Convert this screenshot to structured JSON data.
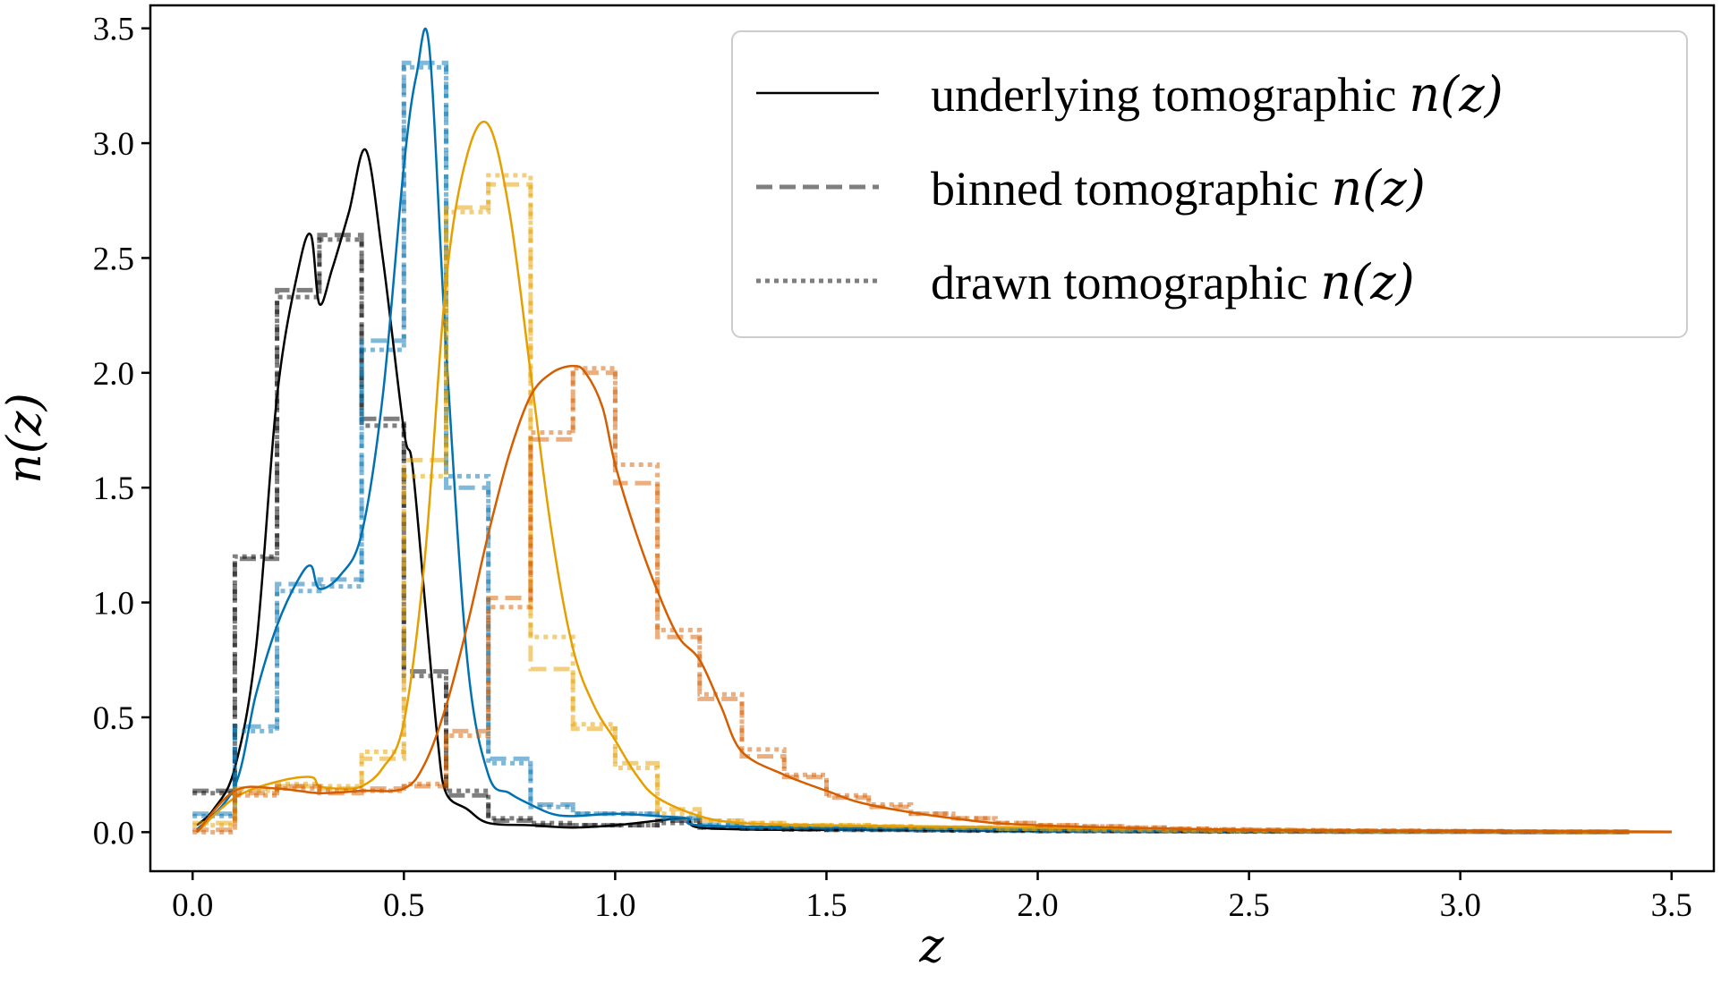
{
  "chart_data": {
    "type": "line",
    "xlabel": "z",
    "ylabel": "n(z)",
    "xlim": [
      -0.1,
      3.6
    ],
    "ylim": [
      -0.17,
      3.6
    ],
    "xticks": [
      "0.0",
      "0.5",
      "1.0",
      "1.5",
      "2.0",
      "2.5",
      "3.0",
      "3.5"
    ],
    "yticks": [
      "0.0",
      "0.5",
      "1.0",
      "1.5",
      "2.0",
      "2.5",
      "3.0",
      "3.5"
    ],
    "grid": false,
    "legend_position": "top-right",
    "legend": [
      {
        "label": "underlying tomographic",
        "math": "n(z)",
        "style": "solid"
      },
      {
        "label": "binned tomographic",
        "math": "n(z)",
        "style": "dashed"
      },
      {
        "label": "drawn tomographic",
        "math": "n(z)",
        "style": "dotted"
      }
    ],
    "bin_edges": [
      0.0,
      0.1,
      0.2,
      0.3,
      0.4,
      0.5,
      0.6,
      0.7,
      0.8,
      0.9,
      1.0,
      1.1,
      1.2,
      1.3,
      1.4,
      1.5,
      1.6,
      1.7,
      1.8,
      1.9,
      2.0,
      2.1,
      2.2,
      2.3,
      2.4,
      2.5,
      2.6,
      2.7,
      2.8,
      2.9,
      3.0,
      3.1,
      3.2,
      3.3,
      3.4
    ],
    "series": [
      {
        "color": "#000000",
        "underlying": {
          "x": [
            0.01,
            0.05,
            0.1,
            0.15,
            0.2,
            0.25,
            0.28,
            0.3,
            0.33,
            0.37,
            0.41,
            0.45,
            0.5,
            0.52,
            0.55,
            0.58,
            0.6,
            0.65,
            0.7,
            0.8,
            0.9,
            1.0,
            1.1,
            1.17,
            1.2,
            1.4,
            1.6,
            2.0,
            2.5,
            3.0,
            3.5
          ],
          "y": [
            0.03,
            0.1,
            0.28,
            0.8,
            1.9,
            2.45,
            2.6,
            2.3,
            2.45,
            2.7,
            2.97,
            2.5,
            1.75,
            1.6,
            1.0,
            0.4,
            0.17,
            0.1,
            0.04,
            0.03,
            0.02,
            0.03,
            0.05,
            0.06,
            0.02,
            0.01,
            0.01,
            0.005,
            0.003,
            0.002,
            0.001
          ]
        },
        "binned": [
          0.18,
          1.19,
          2.36,
          2.6,
          1.8,
          0.7,
          0.16,
          0.05,
          0.03,
          0.03,
          0.03,
          0.05,
          0.02,
          0.015,
          0.012,
          0.01,
          0.01,
          0.008,
          0.007,
          0.006,
          0.005,
          0.005,
          0.004,
          0.004,
          0.003,
          0.003,
          0.003,
          0.002,
          0.002,
          0.002,
          0.002,
          0.001,
          0.001,
          0.001
        ],
        "drawn": [
          0.17,
          1.2,
          2.33,
          2.58,
          1.77,
          0.68,
          0.18,
          0.06,
          0.04,
          0.03,
          0.03,
          0.04,
          0.02,
          0.016,
          0.012,
          0.01,
          0.01,
          0.008,
          0.007,
          0.006,
          0.005,
          0.005,
          0.004,
          0.004,
          0.003,
          0.003,
          0.003,
          0.002,
          0.002,
          0.002,
          0.002,
          0.001,
          0.001,
          0.001
        ]
      },
      {
        "color": "#0072b2",
        "underlying": {
          "x": [
            0.01,
            0.1,
            0.15,
            0.2,
            0.25,
            0.28,
            0.3,
            0.35,
            0.4,
            0.45,
            0.5,
            0.53,
            0.56,
            0.6,
            0.65,
            0.7,
            0.75,
            0.8,
            0.85,
            0.9,
            1.0,
            1.1,
            1.17,
            1.2,
            1.5,
            2.0,
            2.5,
            3.0,
            3.5
          ],
          "y": [
            0.01,
            0.2,
            0.6,
            0.9,
            1.1,
            1.16,
            1.06,
            1.12,
            1.3,
            1.9,
            2.9,
            3.3,
            3.42,
            2.1,
            0.75,
            0.25,
            0.17,
            0.12,
            0.08,
            0.07,
            0.08,
            0.07,
            0.06,
            0.03,
            0.02,
            0.01,
            0.005,
            0.003,
            0.001
          ]
        },
        "binned": [
          0.08,
          0.46,
          1.08,
          1.1,
          2.14,
          3.35,
          1.5,
          0.32,
          0.12,
          0.08,
          0.08,
          0.06,
          0.03,
          0.02,
          0.02,
          0.015,
          0.012,
          0.01,
          0.01,
          0.008,
          0.007,
          0.006,
          0.005,
          0.005,
          0.004,
          0.004,
          0.003,
          0.003,
          0.002,
          0.002,
          0.002,
          0.001,
          0.001,
          0.001
        ],
        "drawn": [
          0.07,
          0.44,
          1.05,
          1.07,
          2.1,
          3.33,
          1.55,
          0.3,
          0.11,
          0.08,
          0.08,
          0.06,
          0.03,
          0.02,
          0.02,
          0.015,
          0.012,
          0.01,
          0.01,
          0.008,
          0.007,
          0.006,
          0.005,
          0.005,
          0.004,
          0.004,
          0.003,
          0.003,
          0.002,
          0.002,
          0.002,
          0.001,
          0.001,
          0.001
        ]
      },
      {
        "color": "#e69f00",
        "underlying": {
          "x": [
            0.01,
            0.1,
            0.2,
            0.28,
            0.3,
            0.35,
            0.4,
            0.45,
            0.5,
            0.55,
            0.6,
            0.65,
            0.7,
            0.75,
            0.8,
            0.85,
            0.9,
            0.95,
            1.0,
            1.05,
            1.1,
            1.2,
            1.3,
            1.5,
            2.0,
            2.5,
            3.0,
            3.5
          ],
          "y": [
            0.0,
            0.15,
            0.22,
            0.24,
            0.2,
            0.19,
            0.2,
            0.28,
            0.48,
            1.2,
            2.4,
            2.95,
            3.08,
            2.7,
            2.0,
            1.3,
            0.8,
            0.55,
            0.4,
            0.25,
            0.15,
            0.07,
            0.04,
            0.03,
            0.02,
            0.01,
            0.005,
            0.002
          ]
        },
        "binned": [
          0.04,
          0.19,
          0.2,
          0.19,
          0.32,
          1.62,
          2.72,
          2.82,
          0.71,
          0.45,
          0.3,
          0.1,
          0.05,
          0.04,
          0.03,
          0.03,
          0.025,
          0.02,
          0.02,
          0.015,
          0.012,
          0.01,
          0.01,
          0.008,
          0.007,
          0.006,
          0.005,
          0.004,
          0.003,
          0.003,
          0.002,
          0.002,
          0.001,
          0.001
        ],
        "drawn": [
          0.03,
          0.18,
          0.21,
          0.2,
          0.35,
          1.55,
          2.7,
          2.86,
          0.85,
          0.47,
          0.28,
          0.08,
          0.05,
          0.04,
          0.03,
          0.03,
          0.025,
          0.02,
          0.02,
          0.015,
          0.012,
          0.01,
          0.01,
          0.008,
          0.007,
          0.006,
          0.005,
          0.004,
          0.003,
          0.003,
          0.002,
          0.002,
          0.001,
          0.001
        ]
      },
      {
        "color": "#d55e00",
        "underlying": {
          "x": [
            0.01,
            0.1,
            0.2,
            0.3,
            0.4,
            0.5,
            0.55,
            0.6,
            0.65,
            0.7,
            0.75,
            0.8,
            0.85,
            0.9,
            0.93,
            0.97,
            1.0,
            1.05,
            1.1,
            1.15,
            1.2,
            1.25,
            1.3,
            1.4,
            1.5,
            1.6,
            1.8,
            2.0,
            2.5,
            3.0,
            3.5
          ],
          "y": [
            0.0,
            0.18,
            0.19,
            0.17,
            0.18,
            0.19,
            0.3,
            0.55,
            0.9,
            1.3,
            1.65,
            1.9,
            2.0,
            2.03,
            2.0,
            1.85,
            1.6,
            1.3,
            1.05,
            0.85,
            0.75,
            0.55,
            0.35,
            0.25,
            0.18,
            0.12,
            0.06,
            0.03,
            0.01,
            0.005,
            0.002
          ]
        },
        "binned": [
          0.01,
          0.17,
          0.2,
          0.17,
          0.19,
          0.2,
          0.44,
          1.02,
          1.71,
          2.0,
          1.52,
          0.85,
          0.58,
          0.33,
          0.24,
          0.15,
          0.11,
          0.08,
          0.06,
          0.04,
          0.03,
          0.025,
          0.02,
          0.015,
          0.012,
          0.01,
          0.008,
          0.007,
          0.006,
          0.005,
          0.004,
          0.003,
          0.002,
          0.002
        ],
        "drawn": [
          0.0,
          0.16,
          0.19,
          0.18,
          0.18,
          0.21,
          0.42,
          0.98,
          1.74,
          2.02,
          1.6,
          0.88,
          0.6,
          0.36,
          0.25,
          0.16,
          0.12,
          0.08,
          0.06,
          0.04,
          0.03,
          0.025,
          0.02,
          0.015,
          0.012,
          0.01,
          0.008,
          0.007,
          0.006,
          0.005,
          0.004,
          0.003,
          0.002,
          0.002
        ]
      }
    ]
  }
}
